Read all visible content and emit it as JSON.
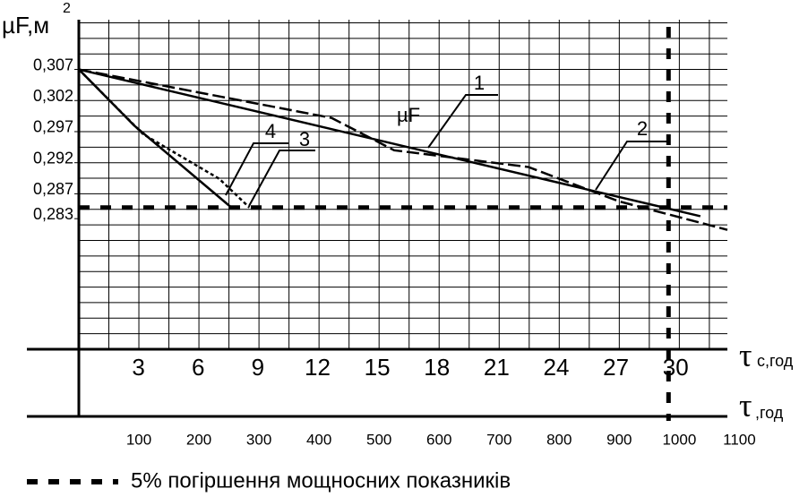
{
  "chart_data": {
    "type": "line",
    "y_label": "µF,м",
    "y_label_sup": "2",
    "xc_label_symbol": "τ",
    "xc_label_unit": "с,год",
    "x_label_symbol": "τ",
    "x_label_unit": ",год",
    "annotation": "µF",
    "legend_text": "5% погіршення мощносних показників",
    "threshold_y": 0.2848,
    "threshold_x": 982,
    "xlim": [
      0,
      1080
    ],
    "ylim": [
      0.262,
      0.315
    ],
    "xticks": [
      100,
      200,
      300,
      400,
      500,
      600,
      700,
      800,
      900,
      1000,
      1100
    ],
    "x2lim": [
      0,
      32.6
    ],
    "x2ticks": [
      3,
      6,
      9,
      12,
      15,
      18,
      21,
      24,
      27,
      30
    ],
    "yticks": [
      {
        "value": 0.307,
        "label": "0,307"
      },
      {
        "value": 0.302,
        "label": "0,302"
      },
      {
        "value": 0.297,
        "label": "0,297"
      },
      {
        "value": 0.292,
        "label": "0,292"
      },
      {
        "value": 0.287,
        "label": "0,287"
      },
      {
        "value": 0.283,
        "label": "0,283"
      }
    ],
    "xgrid_step": 50,
    "ygrid_step": 0.0025,
    "grid": true,
    "series": [
      {
        "name": "1",
        "color": "#000000",
        "style": "solid",
        "x": [
          0,
          1035
        ],
        "values": [
          0.307,
          0.2834
        ]
      },
      {
        "name": "2",
        "color": "#000000",
        "style": "dashed",
        "x": [
          0,
          421,
          525,
          749,
          899,
          1080
        ],
        "values": [
          0.307,
          0.2992,
          0.294,
          0.2913,
          0.2858,
          0.2812
        ]
      },
      {
        "name": "3",
        "color": "#000000",
        "style": "dotted",
        "x": [
          0,
          107,
          234,
          284
        ],
        "values": [
          0.307,
          0.2966,
          0.2894,
          0.2848
        ]
      },
      {
        "name": "4",
        "color": "#000000",
        "style": "solid",
        "x": [
          0,
          92,
          254
        ],
        "values": [
          0.307,
          0.298,
          0.2848
        ]
      }
    ]
  }
}
